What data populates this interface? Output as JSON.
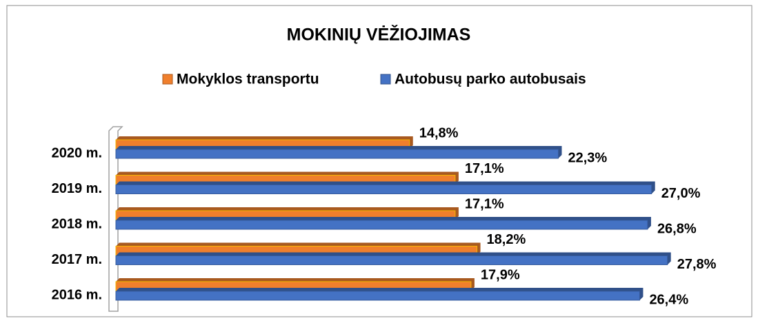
{
  "chart_data": {
    "type": "bar",
    "orientation": "horizontal",
    "title": "MOKINIŲ VĖŽIOJIMAS",
    "categories": [
      "2020 m.",
      "2019 m.",
      "2018 m.",
      "2017 m.",
      "2016 m."
    ],
    "series": [
      {
        "name": "Mokyklos transportu",
        "color": "#f07f2c",
        "values": [
          14.8,
          17.1,
          17.1,
          18.2,
          17.9
        ],
        "value_labels": [
          "14,8%",
          "17,1%",
          "17,1%",
          "18,2%",
          "17,9%"
        ]
      },
      {
        "name": "Autobusų parko  autobusais",
        "color": "#4472c4",
        "values": [
          22.3,
          27.0,
          26.8,
          27.8,
          26.4
        ],
        "value_labels": [
          "22,3%",
          "27,0%",
          "26,8%",
          "27,8%",
          "26,4%"
        ]
      }
    ],
    "xlim": [
      0,
      30
    ]
  }
}
